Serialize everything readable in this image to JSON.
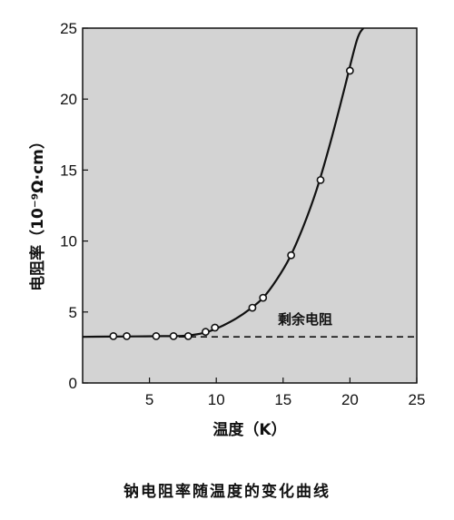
{
  "chart_data": {
    "type": "line",
    "title": "",
    "caption": "钠电阻率随温度的变化曲线",
    "xlabel": "温度（K）",
    "ylabel": "电阻率（10⁻⁹Ω·cm）",
    "xlim": [
      0,
      25
    ],
    "ylim": [
      0,
      25
    ],
    "xticks": [
      5,
      10,
      15,
      20,
      25
    ],
    "yticks": [
      0,
      5,
      10,
      15,
      20,
      25
    ],
    "grid": false,
    "background_color": "#d3d3d3",
    "annotation": {
      "text": "剩余电阻",
      "x": 15.7,
      "y": 4.2
    },
    "residual_line": {
      "y": 3.25,
      "style": "dashed"
    },
    "series": [
      {
        "style": "markers",
        "x": [
          2.3,
          3.3,
          5.5,
          6.8,
          7.9,
          9.2,
          9.9,
          12.7,
          13.5,
          15.6,
          17.8,
          20.0
        ],
        "y": [
          3.3,
          3.3,
          3.3,
          3.3,
          3.3,
          3.6,
          3.9,
          5.3,
          6.0,
          9.0,
          14.3,
          22.0
        ]
      },
      {
        "style": "curve",
        "x": [
          0,
          2,
          4,
          6,
          7.5,
          8.5,
          9.5,
          10.5,
          11.5,
          12.5,
          13.5,
          14.5,
          15.5,
          16.5,
          17.5,
          18.5,
          19.5,
          20.5,
          21.0
        ],
        "y": [
          3.25,
          3.27,
          3.28,
          3.3,
          3.32,
          3.42,
          3.65,
          4.05,
          4.55,
          5.2,
          6.0,
          7.25,
          8.85,
          11.0,
          13.6,
          16.8,
          20.4,
          24.1,
          25.0
        ]
      }
    ]
  }
}
